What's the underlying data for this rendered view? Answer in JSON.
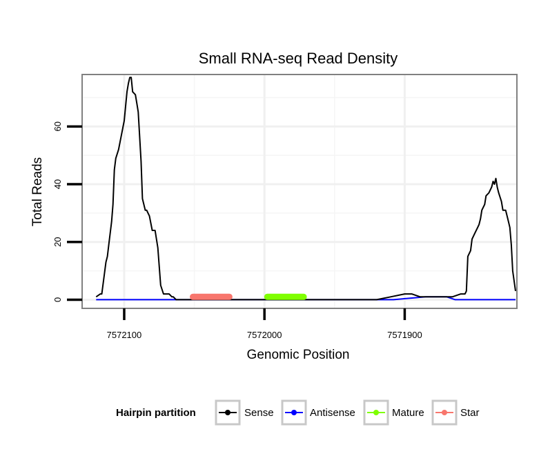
{
  "chart_data": {
    "type": "line",
    "title": "Small RNA-seq Read Density",
    "xlabel": "Genomic Position",
    "ylabel": "Total Reads",
    "xlim": [
      7572130,
      7571820
    ],
    "ylim": [
      -3,
      78
    ],
    "x_reversed": true,
    "x_ticks": [
      {
        "value": 7572100,
        "label": "7572100"
      },
      {
        "value": 7572000,
        "label": "7572000"
      },
      {
        "value": 7571900,
        "label": "7571900"
      }
    ],
    "y_ticks": [
      {
        "value": 0,
        "label": "0"
      },
      {
        "value": 20,
        "label": "20"
      },
      {
        "value": 40,
        "label": "40"
      },
      {
        "value": 60,
        "label": "60"
      }
    ],
    "grid": true,
    "legend_position": "bottom",
    "legend_title": "Hairpin partition",
    "series": [
      {
        "name": "Sense",
        "color": "#000000",
        "x": [
          7572120,
          7572117,
          7572116,
          7572113,
          7572112,
          7572111,
          7572109,
          7572108,
          7572107,
          7572106,
          7572104,
          7572102,
          7572100,
          7572098,
          7572097,
          7572096,
          7572095,
          7572094,
          7572092,
          7572091,
          7572090,
          7572088,
          7572087,
          7572085,
          7572084,
          7572083,
          7572082,
          7572080,
          7572078,
          7572076,
          7572074,
          7572072,
          7572070,
          7572068,
          7572066,
          7572065,
          7572063,
          7572062,
          7572059,
          7572055,
          7572050,
          7572045,
          7572040,
          7572035,
          7572020,
          7572000,
          7571980,
          7571960,
          7571935,
          7571929,
          7571920,
          7571910,
          7571900,
          7571895,
          7571889,
          7571885,
          7571880,
          7571875,
          7571866,
          7571860,
          7571857,
          7571856,
          7571855,
          7571853,
          7571852,
          7571850,
          7571848,
          7571847,
          7571846,
          7571845,
          7571843,
          7571842,
          7571840,
          7571838,
          7571837,
          7571836,
          7571835,
          7571834,
          7571833,
          7571831,
          7571830,
          7571828,
          7571827,
          7571826,
          7571825,
          7571824,
          7571823,
          7571821
        ],
        "values": [
          1,
          2,
          2,
          13,
          15,
          19,
          27,
          33,
          45,
          49,
          52,
          57,
          62,
          72,
          75,
          77,
          77,
          72,
          71,
          68,
          65,
          48,
          35,
          31,
          31,
          30,
          29,
          24,
          24,
          18,
          5,
          2,
          2,
          2,
          1,
          1,
          0,
          0,
          0,
          0,
          0,
          0,
          0,
          0,
          0,
          0,
          0,
          0,
          0,
          0,
          0,
          1,
          2,
          2,
          1,
          1,
          1,
          1,
          1,
          2,
          2,
          3,
          15,
          17,
          21,
          23,
          25,
          26,
          28,
          31,
          33,
          36,
          37,
          39,
          41,
          40,
          42,
          39,
          37,
          34,
          31,
          31,
          29,
          27,
          25,
          19,
          10,
          3
        ]
      },
      {
        "name": "Antisense",
        "color": "#0000ff",
        "x": [
          7572120,
          7571908,
          7571885,
          7571880,
          7571870,
          7571864,
          7571821
        ],
        "values": [
          0,
          0,
          1,
          1,
          1,
          0,
          0
        ]
      },
      {
        "name": "Mature",
        "color": "#7fff00",
        "x": [
          7571998,
          7571972
        ],
        "values": [
          1,
          1
        ]
      },
      {
        "name": "Star",
        "color": "#f8766d",
        "x": [
          7572051,
          7572025
        ],
        "values": [
          1,
          1
        ]
      }
    ]
  }
}
